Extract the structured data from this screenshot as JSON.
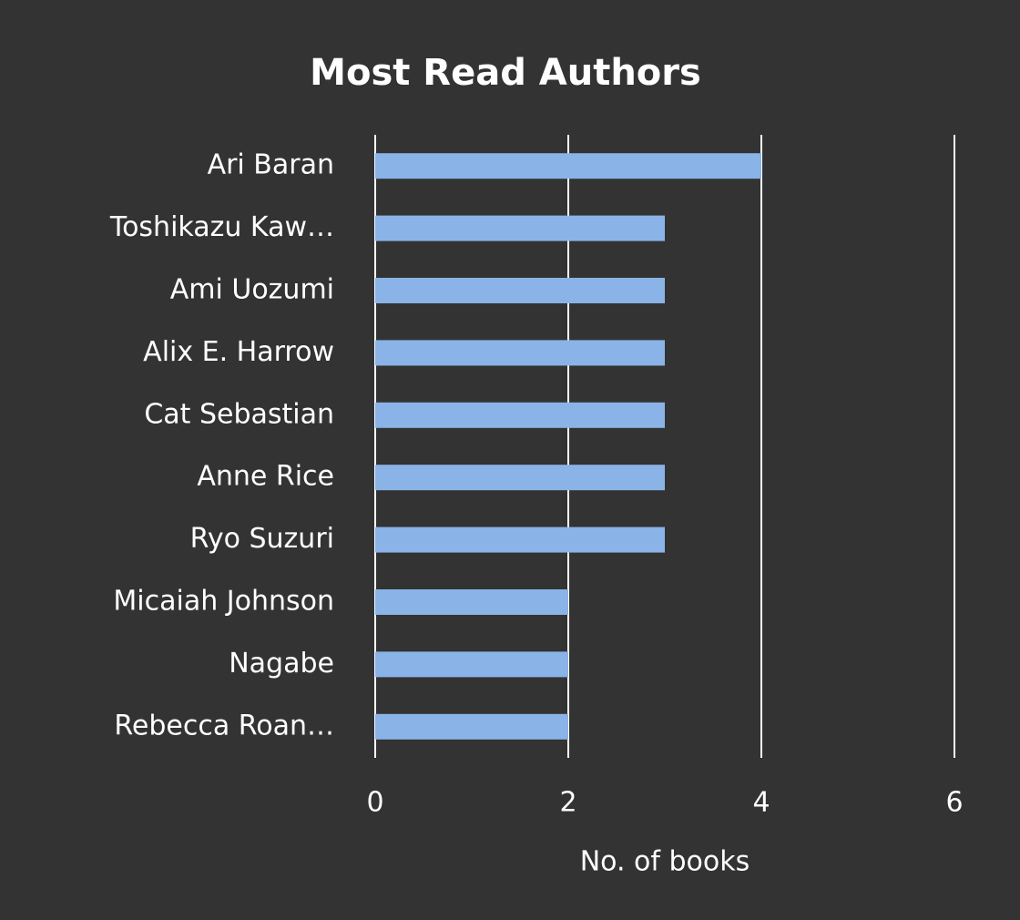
{
  "chart_data": {
    "type": "bar",
    "orientation": "horizontal",
    "title": "Most Read Authors",
    "x_label": "No. of books",
    "categories": [
      "Ari Baran",
      "Toshikazu Kaw…",
      "Ami Uozumi",
      "Alix E. Harrow",
      "Cat Sebastian",
      "Anne Rice",
      "Ryo Suzuri",
      "Micaiah Johnson",
      "Nagabe",
      "Rebecca Roan…"
    ],
    "values": [
      4,
      3,
      3,
      3,
      3,
      3,
      3,
      2,
      2,
      2
    ],
    "color": "#8ab4e8",
    "xlim": [
      0,
      6
    ],
    "xticks": [
      0,
      2,
      4,
      6
    ],
    "grid": true
  }
}
